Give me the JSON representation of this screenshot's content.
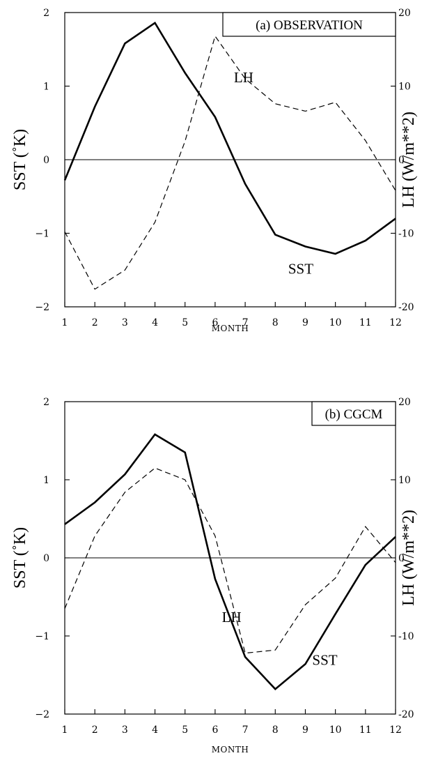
{
  "chart_data": [
    {
      "type": "line",
      "title": "(a) OBSERVATION",
      "xlabel": "MONTH",
      "ylabel": "SST (˚K)",
      "y2label": "LH (W/m**2)",
      "x": [
        1,
        2,
        3,
        4,
        5,
        6,
        7,
        8,
        9,
        10,
        11,
        12
      ],
      "xticks": [
        "1",
        "2",
        "3",
        "4",
        "5",
        "6",
        "7",
        "8",
        "9",
        "10",
        "11",
        "12"
      ],
      "ylim": [
        -2,
        2
      ],
      "y2lim": [
        -20,
        20
      ],
      "yticks": [
        "−2",
        "−1",
        "0",
        "1",
        "2"
      ],
      "y2ticks": [
        "-20",
        "-10",
        "0",
        "10",
        "20"
      ],
      "series": [
        {
          "name": "SST",
          "axis": "left",
          "style": "solid",
          "values": [
            -0.28,
            0.72,
            1.58,
            1.86,
            1.18,
            0.58,
            -0.33,
            -1.02,
            -1.18,
            -1.28,
            -1.1,
            -0.8
          ]
        },
        {
          "name": "LH",
          "axis": "right",
          "style": "dashed",
          "values": [
            -9.8,
            -17.6,
            -15.0,
            -8.5,
            2.5,
            16.8,
            11.0,
            7.6,
            6.6,
            7.8,
            2.6,
            -4.2
          ]
        }
      ],
      "annotations": [
        {
          "text": "LH",
          "x": 6.95,
          "y2": 10.5
        },
        {
          "text": "SST",
          "x": 8.85,
          "y": -1.55
        }
      ]
    },
    {
      "type": "line",
      "title": "(b) CGCM",
      "xlabel": "MONTH",
      "ylabel": "SST (˚K)",
      "y2label": "LH (W/m**2)",
      "x": [
        1,
        2,
        3,
        4,
        5,
        6,
        7,
        8,
        9,
        10,
        11,
        12
      ],
      "xticks": [
        "1",
        "2",
        "3",
        "4",
        "5",
        "6",
        "7",
        "8",
        "9",
        "10",
        "11",
        "12"
      ],
      "ylim": [
        -2,
        2
      ],
      "y2lim": [
        -20,
        20
      ],
      "yticks": [
        "−2",
        "−1",
        "0",
        "1",
        "2"
      ],
      "y2ticks": [
        "-20",
        "-10",
        "0",
        "10",
        "20"
      ],
      "series": [
        {
          "name": "SST",
          "axis": "left",
          "style": "solid",
          "values": [
            0.43,
            0.71,
            1.07,
            1.58,
            1.35,
            -0.27,
            -1.27,
            -1.68,
            -1.36,
            -0.72,
            -0.09,
            0.27
          ]
        },
        {
          "name": "LH",
          "axis": "right",
          "style": "dashed",
          "values": [
            -6.5,
            2.8,
            8.4,
            11.5,
            10.0,
            2.8,
            -12.2,
            -11.8,
            -6.0,
            -2.6,
            4.0,
            -0.6
          ]
        }
      ],
      "annotations": [
        {
          "text": "LH",
          "x": 6.55,
          "y2": -8.2
        },
        {
          "text": "SST",
          "x": 9.65,
          "y": -1.37
        }
      ]
    }
  ]
}
